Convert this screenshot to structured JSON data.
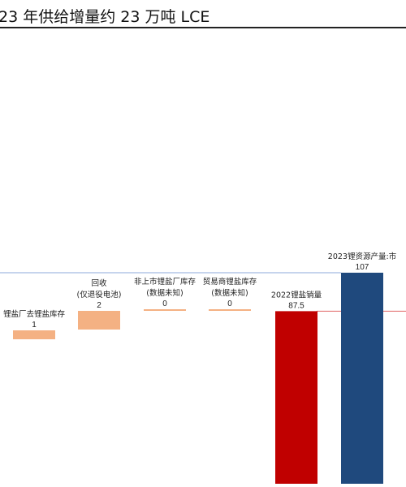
{
  "title": "23 年供给增量约 23 万吨 LCE",
  "colors": {
    "increment": "#f4b183",
    "base": "#c00000",
    "total": "#1f497d",
    "total_line": "#8eaadb",
    "base_line": "#e06666"
  },
  "chart_data": {
    "type": "bar",
    "subtype": "waterfall",
    "title": "23 年供给增量约 23 万吨 LCE",
    "ylabel": "",
    "categories": [
      [
        "锂盐厂去锂盐库存"
      ],
      [
        "回收",
        "(仅退役电池)"
      ],
      [
        "非上市锂盐厂库存",
        "(数据未知)"
      ],
      [
        "贸易商锂盐库存",
        "(数据未知)"
      ],
      [
        "2022锂盐销量"
      ],
      [
        "2023锂资源产量:市"
      ]
    ],
    "values": [
      1,
      2,
      0,
      0,
      87.5,
      107
    ],
    "value_labels": [
      "1",
      "2",
      "0",
      "0",
      "87.5",
      "107"
    ],
    "kinds": [
      "increment",
      "increment",
      "increment",
      "increment",
      "base",
      "total"
    ]
  }
}
